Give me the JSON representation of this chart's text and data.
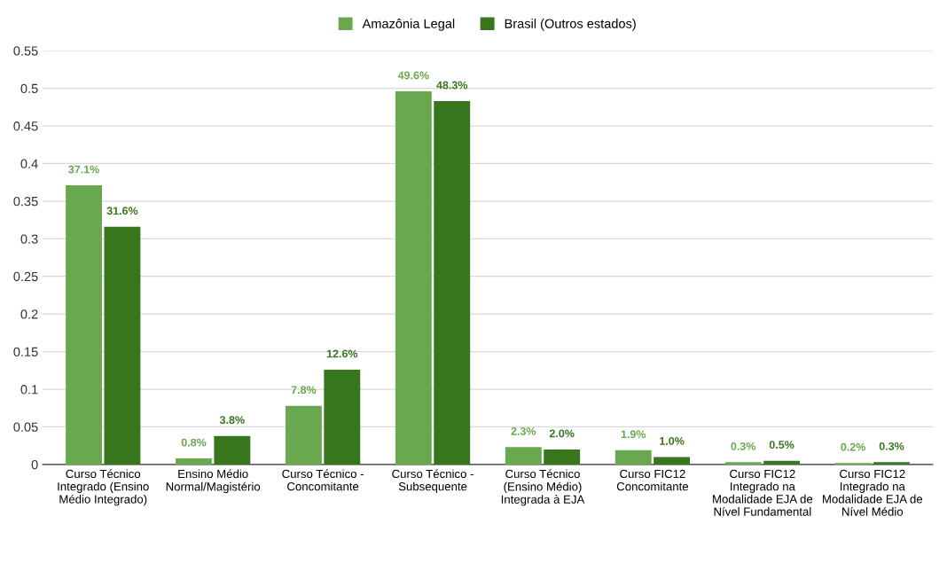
{
  "chart_data": {
    "type": "bar",
    "categories": [
      "Curso Técnico\nIntegrado (Ensino\nMédio Integrado)",
      "Ensino Médio\nNormal/Magistério",
      "Curso Técnico -\nConcomitante",
      "Curso Técnico -\nSubsequente",
      "Curso Técnico\n(Ensino Médio)\nIntegrada à EJA",
      "Curso FIC12\nConcomitante",
      "Curso FIC12\nIntegrado na\nModalidade EJA de\nNível Fundamental",
      "Curso FIC12\nIntegrado na\nModalidade EJA de\nNível Médio"
    ],
    "series": [
      {
        "name": "Amazônia Legal",
        "color": "#6aa84f",
        "values": [
          0.371,
          0.008,
          0.078,
          0.496,
          0.023,
          0.019,
          0.003,
          0.002
        ],
        "value_labels": [
          "37.1%",
          "0.8%",
          "7.8%",
          "49.6%",
          "2.3%",
          "1.9%",
          "0.3%",
          "0.2%"
        ]
      },
      {
        "name": "Brasil (Outros estados)",
        "color": "#38761d",
        "values": [
          0.316,
          0.038,
          0.126,
          0.483,
          0.02,
          0.01,
          0.005,
          0.003
        ],
        "value_labels": [
          "31.6%",
          "3.8%",
          "12.6%",
          "48.3%",
          "2.0%",
          "1.0%",
          "0.5%",
          "0.3%"
        ]
      }
    ],
    "ylim": [
      0,
      0.55
    ],
    "yticks": [
      0,
      0.05,
      0.1,
      0.15,
      0.2,
      0.25,
      0.3,
      0.35,
      0.4,
      0.45,
      0.5,
      0.55
    ],
    "grid": "y",
    "legend": "top"
  }
}
